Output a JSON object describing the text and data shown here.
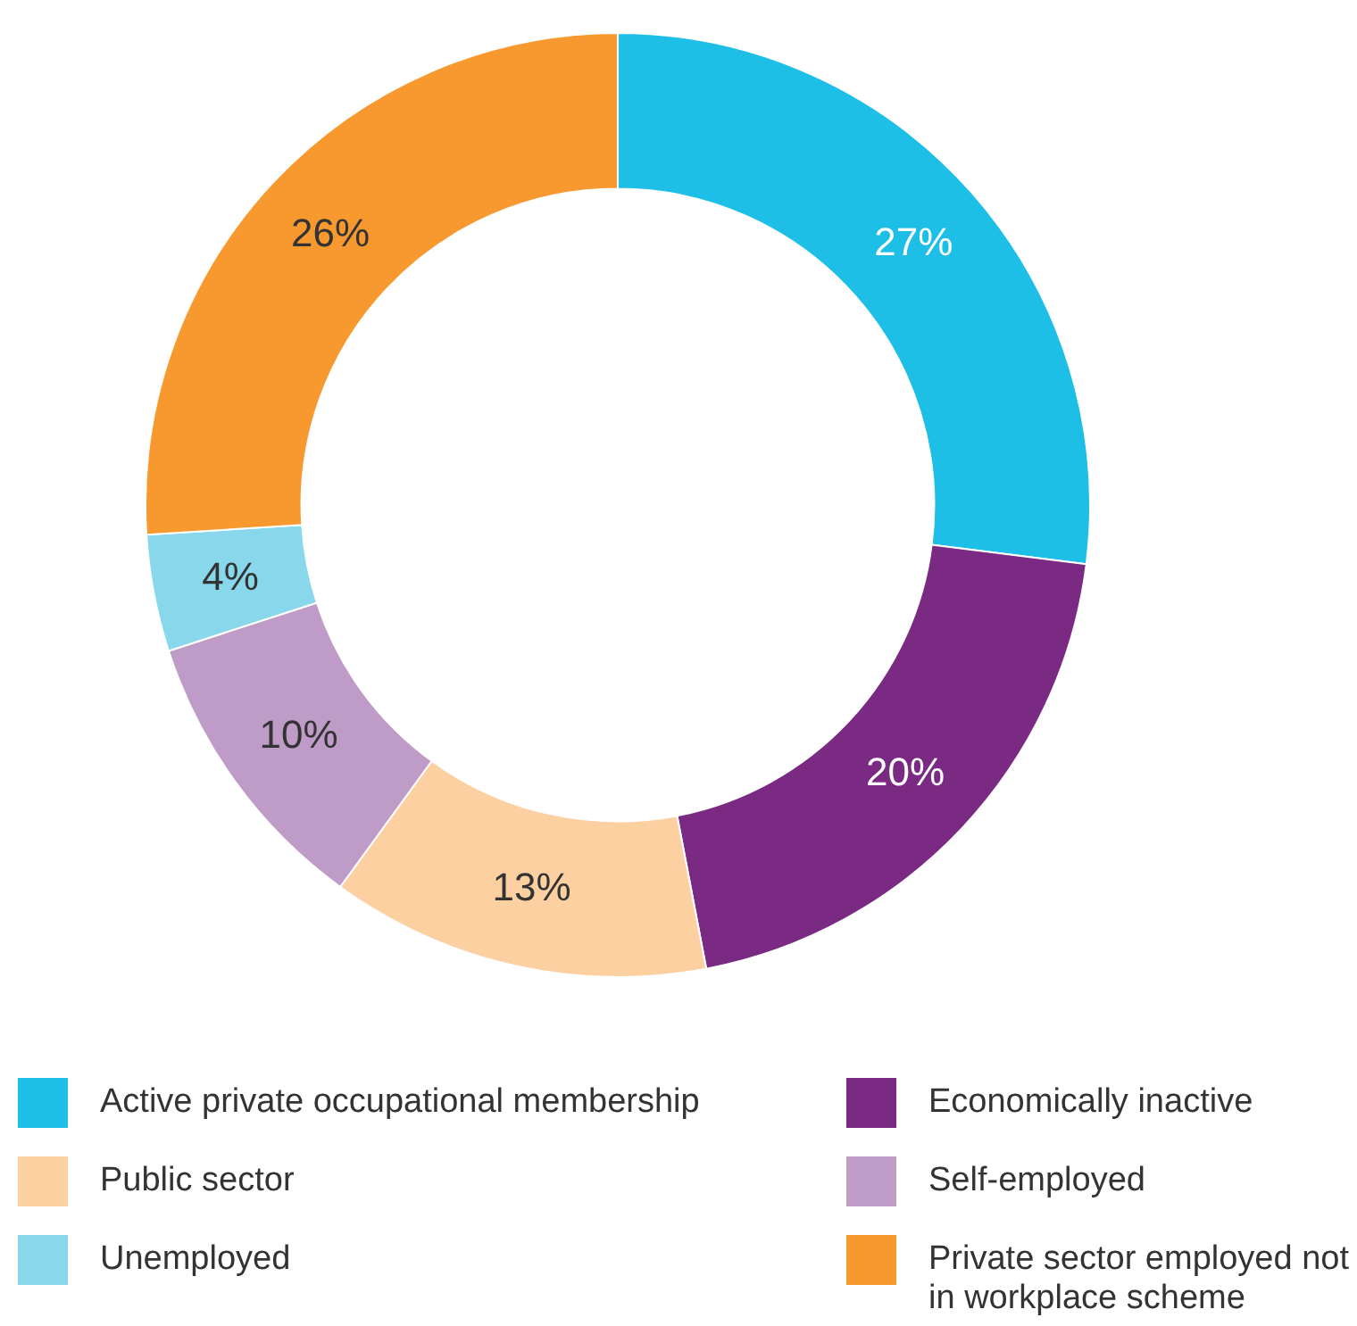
{
  "chart_data": {
    "type": "donut",
    "categories": [
      "Active private occupational membership",
      "Economically inactive",
      "Public sector",
      "Self-employed",
      "Unemployed",
      "Private sector employed not in workplace scheme"
    ],
    "values": [
      27,
      20,
      13,
      10,
      4,
      26
    ],
    "colors": [
      "#1dbfe6",
      "#7b2a84",
      "#fdd0a2",
      "#bf9cc7",
      "#89d7ea",
      "#f7992f"
    ],
    "value_labels": [
      "27%",
      "20%",
      "13%",
      "10%",
      "4%",
      "26%"
    ],
    "legend": "bottom"
  }
}
